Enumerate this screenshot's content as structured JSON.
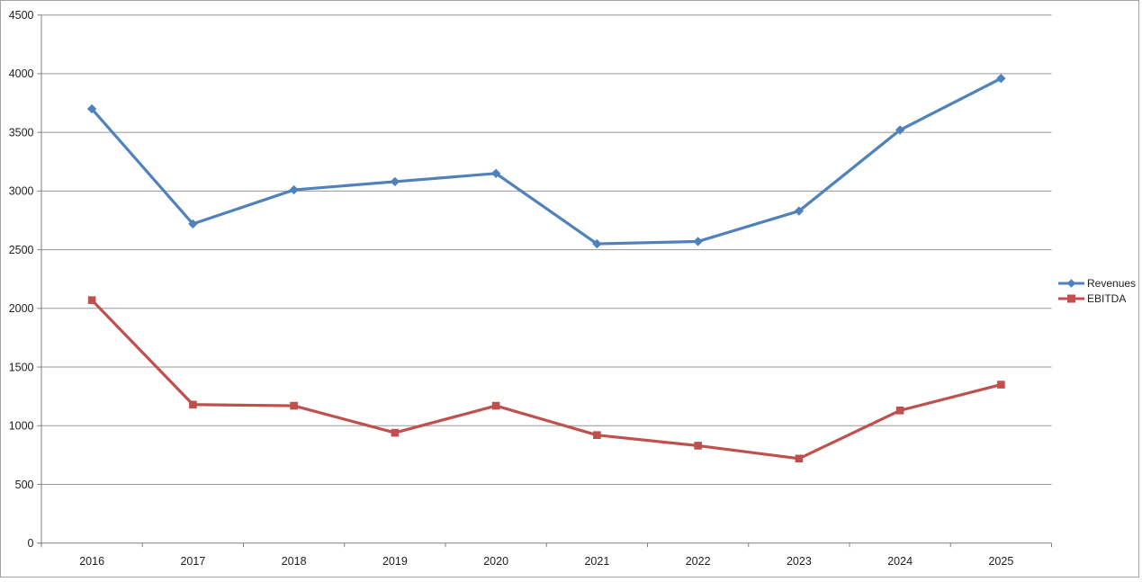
{
  "chart_data": {
    "type": "line",
    "title": "",
    "xlabel": "",
    "ylabel": "",
    "categories": [
      "2016",
      "2017",
      "2018",
      "2019",
      "2020",
      "2021",
      "2022",
      "2023",
      "2024",
      "2025"
    ],
    "series": [
      {
        "name": "Revenues",
        "color": "#4F81BD",
        "marker": "diamond",
        "values": [
          3700,
          2720,
          3010,
          3080,
          3150,
          2550,
          2570,
          2830,
          3520,
          3960
        ]
      },
      {
        "name": "EBITDA",
        "color": "#C0504D",
        "marker": "square",
        "values": [
          2070,
          1180,
          1170,
          940,
          1170,
          920,
          830,
          720,
          1130,
          1350
        ]
      }
    ],
    "y_axis": {
      "min": 0,
      "max": 4500,
      "step": 500,
      "tick_labels": [
        "0",
        "500",
        "1000",
        "1500",
        "2000",
        "2500",
        "3000",
        "3500",
        "4000",
        "4500"
      ]
    },
    "x_axis": {
      "tick_labels": [
        "2016",
        "2017",
        "2018",
        "2019",
        "2020",
        "2021",
        "2022",
        "2023",
        "2024",
        "2025"
      ]
    },
    "legend": {
      "position": "right",
      "entries": [
        "Revenues",
        "EBITDA"
      ]
    },
    "grid": true,
    "colors": {
      "gridline": "#969696",
      "axis": "#808080",
      "tick_text": "#1f1f1f",
      "frame_border": "#a3a3a3",
      "background": "#ffffff"
    }
  }
}
